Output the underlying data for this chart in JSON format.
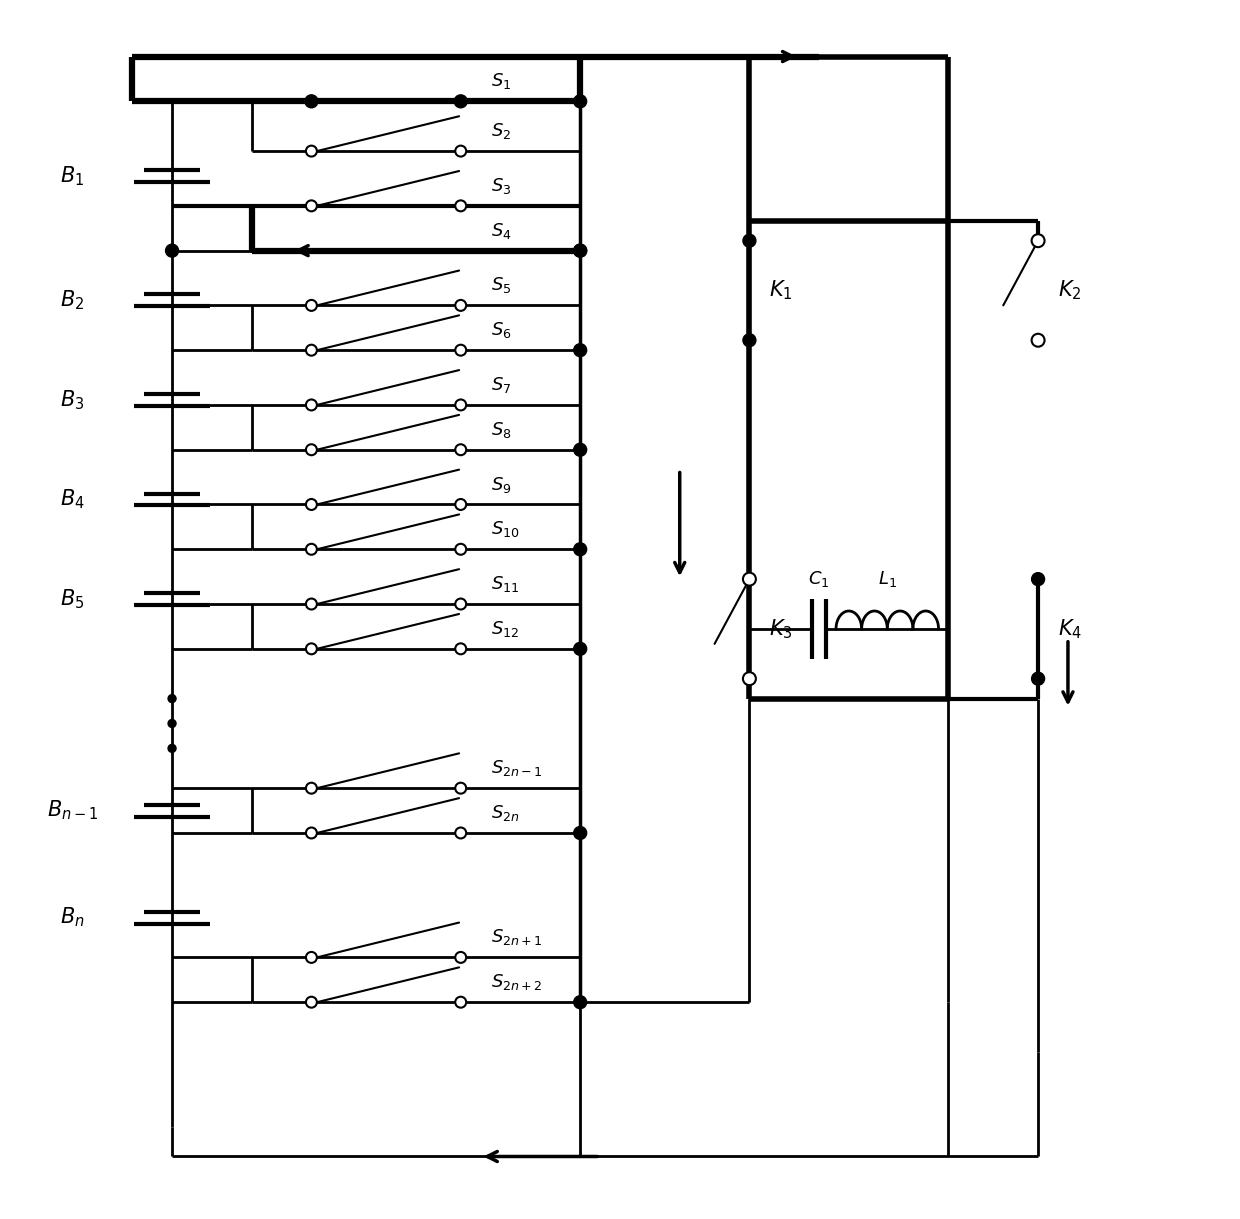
{
  "figsize": [
    12.4,
    12.19
  ],
  "dpi": 100,
  "bg_color": "#ffffff",
  "lw_thick": 3.0,
  "lw_med": 2.0,
  "lw_thin": 1.5,
  "battery_names": [
    "$B_1$",
    "$B_2$",
    "$B_3$",
    "$B_4$",
    "$B_5$",
    "$B_{n-1}$",
    "$B_n$"
  ],
  "switch_names": [
    "$S_1$",
    "$S_2$",
    "$S_3$",
    "$S_4$",
    "$S_5$",
    "$S_6$",
    "$S_7$",
    "$S_8$",
    "$S_9$",
    "$S_{10}$",
    "$S_{11}$",
    "$S_{12}$",
    "$S_{2n-1}$",
    "$S_{2n}$",
    "$S_{2n+1}$",
    "$S_{2n+2}$"
  ],
  "k_names": [
    "$K_1$",
    "$K_2$",
    "$K_3$",
    "$K_4$"
  ],
  "cl_names": [
    "$C_1$",
    "$L_1$"
  ],
  "fs_label": 15,
  "fs_switch": 13
}
